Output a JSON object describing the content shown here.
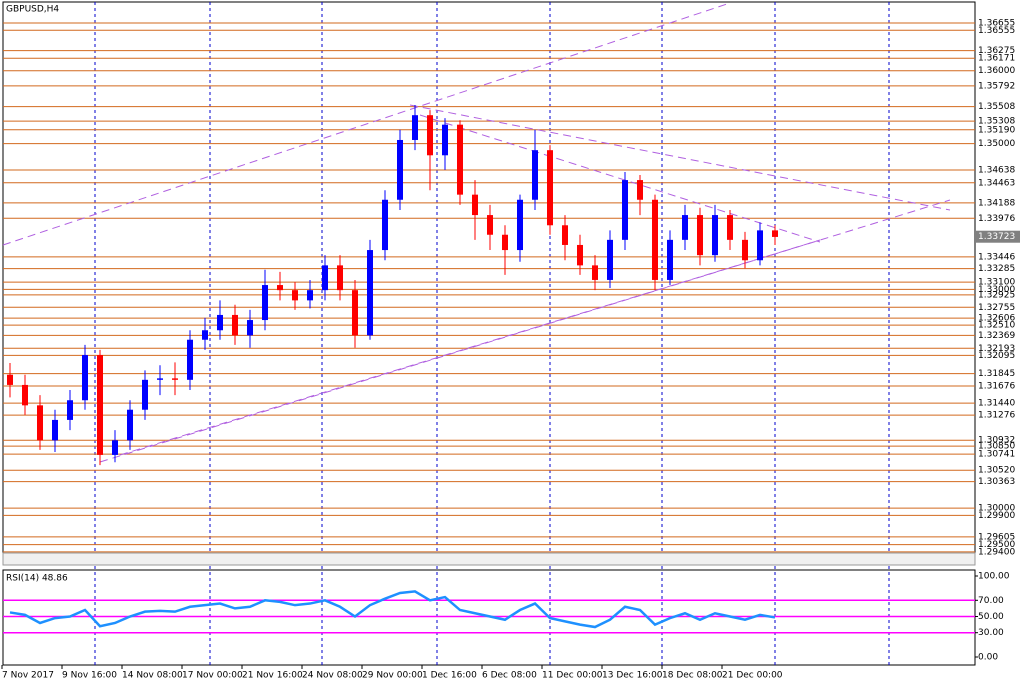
{
  "chart_data": [
    {
      "type": "candlestick",
      "title": "GBPUSD,H4",
      "categories": [
        "7 Nov 2017",
        null,
        null,
        null,
        "9 Nov 16:00",
        null,
        null,
        null,
        "14 Nov 08:00",
        null,
        null,
        null,
        "17 Nov 00:00",
        null,
        null,
        null,
        "21 Nov 16:00",
        null,
        null,
        null,
        "24 Nov 08:00",
        null,
        null,
        null,
        "29 Nov 00:00",
        null,
        null,
        null,
        "1 Dec 16:00",
        null,
        null,
        null,
        "6 Dec 08:00",
        null,
        null,
        null,
        "11 Dec 00:00",
        null,
        null,
        null,
        "13 Dec 16:00",
        null,
        null,
        null,
        "18 Dec 08:00",
        null,
        null,
        null,
        "21 Dec 00:00",
        null,
        null,
        null
      ],
      "open": [
        1.3183,
        1.3169,
        1.3141,
        1.3093,
        1.3121,
        1.3148,
        1.321,
        1.3073,
        1.3093,
        1.3135,
        1.3176,
        1.3178,
        1.3176,
        1.3231,
        1.3244,
        1.3265,
        1.3237,
        1.3258,
        1.3306,
        1.3299,
        1.3285,
        1.3299,
        1.3333,
        1.3299,
        1.3237,
        1.3354,
        1.3423,
        1.3505,
        1.3539,
        1.3484,
        1.3526,
        1.343,
        1.3402,
        1.3375,
        1.3354,
        1.3423,
        1.3491,
        1.3388,
        1.3361,
        1.3333,
        1.3313,
        1.3368,
        1.345,
        1.3423,
        1.3313,
        1.3368,
        1.3402,
        1.3347,
        1.3402,
        1.3368,
        1.334,
        1.3381
      ],
      "high": [
        1.3199,
        1.3183,
        1.3155,
        1.3135,
        1.3162,
        1.3224,
        1.3217,
        1.3107,
        1.3148,
        1.3189,
        1.3196,
        1.32,
        1.3244,
        1.3261,
        1.3285,
        1.3279,
        1.3272,
        1.3327,
        1.3324,
        1.331,
        1.3313,
        1.3347,
        1.3347,
        1.3313,
        1.3368,
        1.3436,
        1.3519,
        1.3553,
        1.3546,
        1.3535,
        1.3532,
        1.345,
        1.3416,
        1.3388,
        1.343,
        1.3519,
        1.3498,
        1.3402,
        1.3375,
        1.3347,
        1.3381,
        1.3461,
        1.3457,
        1.343,
        1.3381,
        1.3416,
        1.3412,
        1.3416,
        1.3409,
        1.3379,
        1.3392,
        1.3388
      ],
      "low": [
        1.3152,
        1.3128,
        1.308,
        1.3077,
        1.3107,
        1.3135,
        1.3059,
        1.3063,
        1.308,
        1.3121,
        1.3155,
        1.3155,
        1.3162,
        1.3217,
        1.3231,
        1.3224,
        1.322,
        1.3244,
        1.3285,
        1.3272,
        1.3274,
        1.3285,
        1.3285,
        1.322,
        1.3231,
        1.334,
        1.3409,
        1.3491,
        1.3436,
        1.3464,
        1.3416,
        1.3368,
        1.3354,
        1.332,
        1.3338,
        1.3409,
        1.3375,
        1.334,
        1.332,
        1.3299,
        1.3302,
        1.3354,
        1.3402,
        1.3299,
        1.3306,
        1.3354,
        1.3333,
        1.3338,
        1.3354,
        1.3329,
        1.3333,
        1.3361
      ],
      "close": [
        1.3169,
        1.3141,
        1.3093,
        1.3121,
        1.3148,
        1.321,
        1.3073,
        1.3093,
        1.3135,
        1.3176,
        1.3178,
        1.3176,
        1.3231,
        1.3244,
        1.3265,
        1.3237,
        1.3258,
        1.3306,
        1.3299,
        1.3285,
        1.3299,
        1.3333,
        1.3299,
        1.3237,
        1.3354,
        1.3423,
        1.3505,
        1.3539,
        1.3484,
        1.3526,
        1.343,
        1.3402,
        1.3375,
        1.3354,
        1.3423,
        1.3491,
        1.3388,
        1.3361,
        1.3333,
        1.3313,
        1.3368,
        1.345,
        1.3423,
        1.3313,
        1.3368,
        1.3402,
        1.3347,
        1.3402,
        1.3368,
        1.334,
        1.3381,
        1.3372
      ],
      "up_color": "#0000ff",
      "down_color": "#ff0000",
      "level_color": "#d2691e",
      "last_price": 1.33723,
      "ylim": [
        1.2922,
        1.3697
      ],
      "yticks": [
        1.36655,
        1.36555,
        1.36275,
        1.36171,
        {
          "value": 1.36,
          "label": "1.36000"
        },
        1.35792,
        1.35508,
        1.35308,
        {
          "value": 1.3519,
          "label": "1.35190"
        },
        {
          "value": 1.35,
          "label": "1.35000"
        },
        1.34638,
        1.34463,
        1.34188,
        1.33976,
        1.33446,
        1.33285,
        {
          "value": 1.331,
          "label": "1.33100"
        },
        {
          "value": 1.33,
          "label": "1.33000"
        },
        1.32925,
        1.32755,
        1.32606,
        {
          "value": 1.3251,
          "label": "1.32510"
        },
        1.32369,
        1.32193,
        1.32095,
        1.31845,
        1.31676,
        {
          "value": 1.3144,
          "label": "1.31440"
        },
        1.31276,
        1.30932,
        {
          "value": 1.3085,
          "label": "1.30850"
        },
        1.30741,
        {
          "value": 1.3052,
          "label": "1.30520"
        },
        1.30363,
        {
          "value": 1.3,
          "label": "1.30000"
        },
        {
          "value": 1.299,
          "label": "1.29900"
        },
        1.29605,
        {
          "value": 1.295,
          "label": "1.29500"
        },
        {
          "value": 1.294,
          "label": "1.29400"
        }
      ]
    },
    {
      "type": "line",
      "title": "RSI(14) 48.86",
      "color": "#1e90ff",
      "level_color": "#ff00ff",
      "values": [
        55,
        52,
        42,
        48,
        50,
        58,
        38,
        42,
        50,
        56,
        57,
        56,
        62,
        64,
        66,
        60,
        62,
        70,
        68,
        64,
        66,
        70,
        62,
        50,
        64,
        72,
        79,
        81,
        70,
        74,
        58,
        54,
        50,
        46,
        58,
        66,
        48,
        44,
        40,
        37,
        46,
        62,
        58,
        40,
        48,
        54,
        46,
        54,
        50,
        46,
        52,
        48.86
      ],
      "ylim": [
        0,
        100
      ],
      "yticks": [
        {
          "value": 100,
          "label": "100.00"
        },
        {
          "value": 70,
          "label": "70.00"
        },
        {
          "value": 50,
          "label": "50.00"
        },
        {
          "value": 30,
          "label": "30.00"
        },
        {
          "value": 0,
          "label": "0.00"
        }
      ]
    }
  ]
}
